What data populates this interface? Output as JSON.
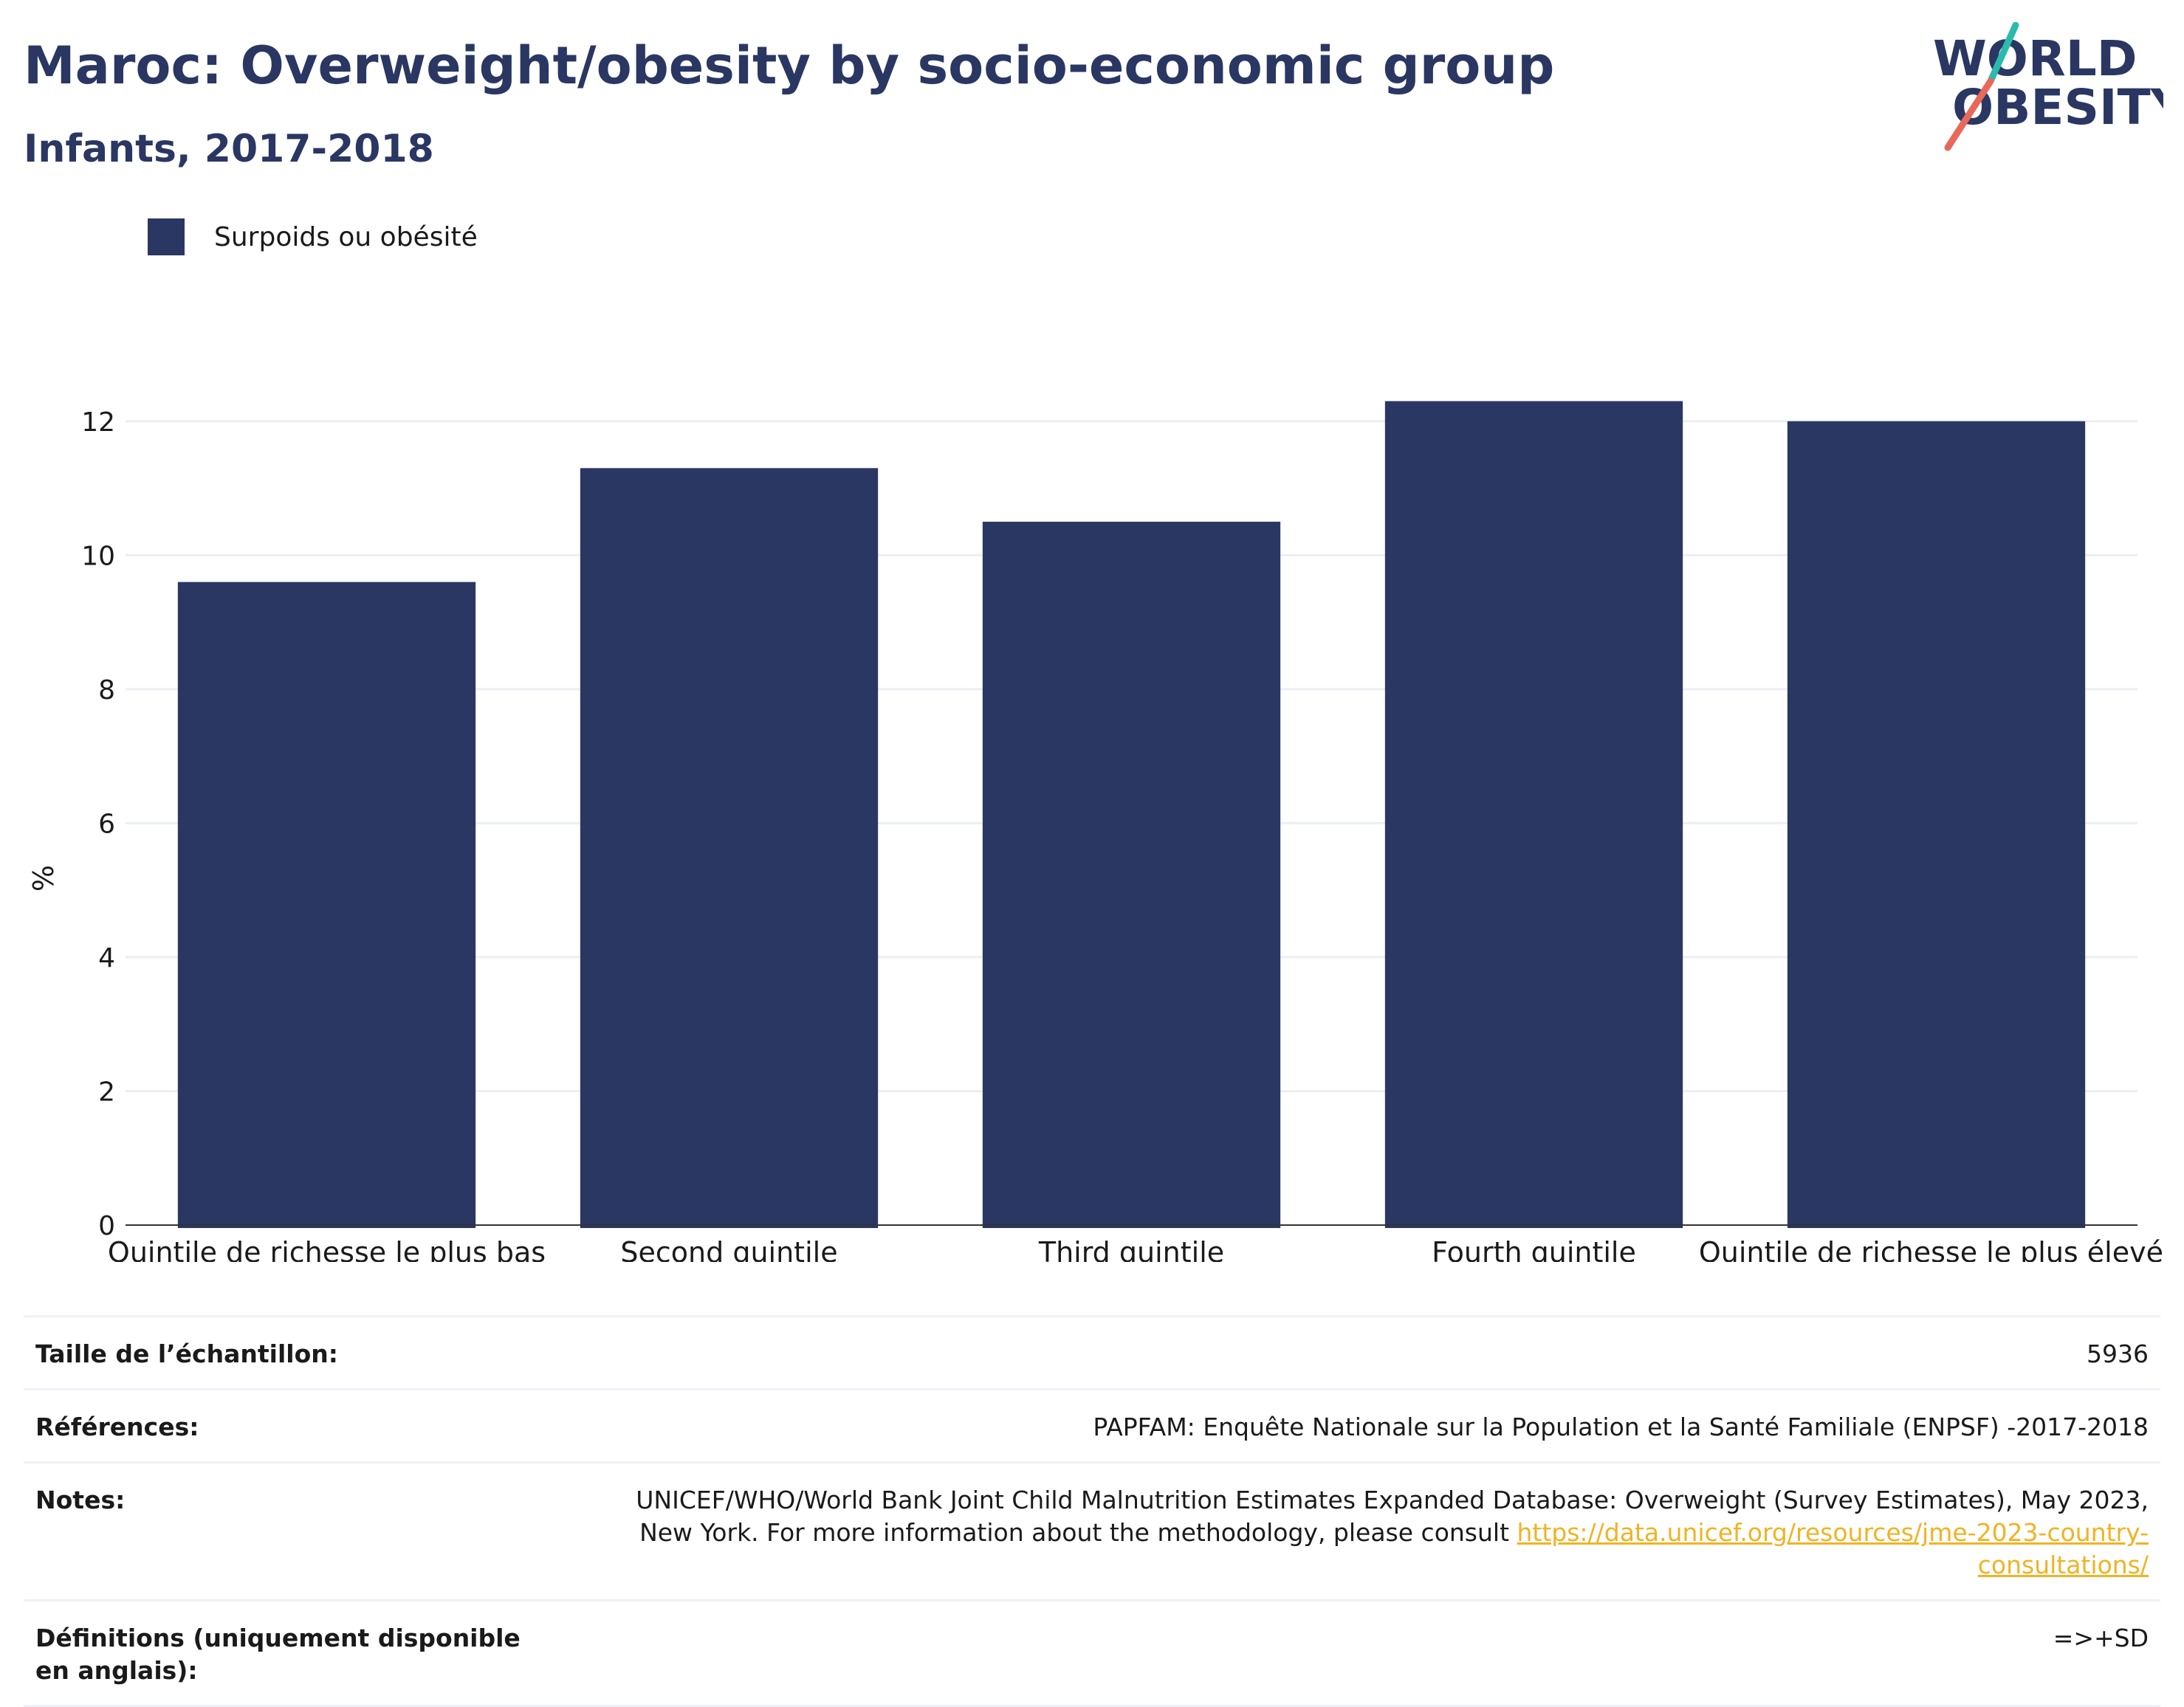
{
  "header": {
    "title": "Maroc: Overweight/obesity by socio-economic group",
    "subtitle": "Infants, 2017-2018"
  },
  "logo": {
    "line1": "WORLD",
    "line2": "OBESITY",
    "colors": {
      "text": "#2a3762",
      "slash_top": "#2bbbad",
      "slash_bottom": "#e8685a"
    }
  },
  "legend": {
    "label": "Surpoids ou obésité",
    "color": "#2a3762"
  },
  "chart_data": {
    "type": "bar",
    "categories": [
      "Quintile de richesse le plus bas",
      "Second quintile",
      "Third quintile",
      "Fourth quintile",
      "Quintile de richesse le plus élevé"
    ],
    "series": [
      {
        "name": "Surpoids ou obésité",
        "values": [
          9.6,
          11.3,
          10.5,
          12.3,
          12.0
        ]
      }
    ],
    "ylabel": "%",
    "ylim": [
      0,
      13
    ],
    "yticks": [
      0,
      2,
      4,
      6,
      8,
      10,
      12
    ],
    "grid": true,
    "legend_position": "top-left",
    "bar_color": "#2a3762"
  },
  "meta": {
    "rows": [
      {
        "key": "Taille de l’échantillon:",
        "value": "5936"
      },
      {
        "key": "Références:",
        "value": "PAPFAM: Enquête Nationale sur la Population et la Santé Familiale (ENPSF) -2017-2018"
      },
      {
        "key": "Notes:",
        "value": "UNICEF/WHO/World Bank Joint Child Malnutrition Estimates Expanded Database: Overweight (Survey Estimates), May 2023, New York. For more information about the methodology, please consult ",
        "link": "https://data.unicef.org/resources/jme-2023-country-consultations/"
      },
      {
        "key": "Définitions (uniquement disponible en anglais):",
        "value": "=>+SD"
      }
    ]
  }
}
